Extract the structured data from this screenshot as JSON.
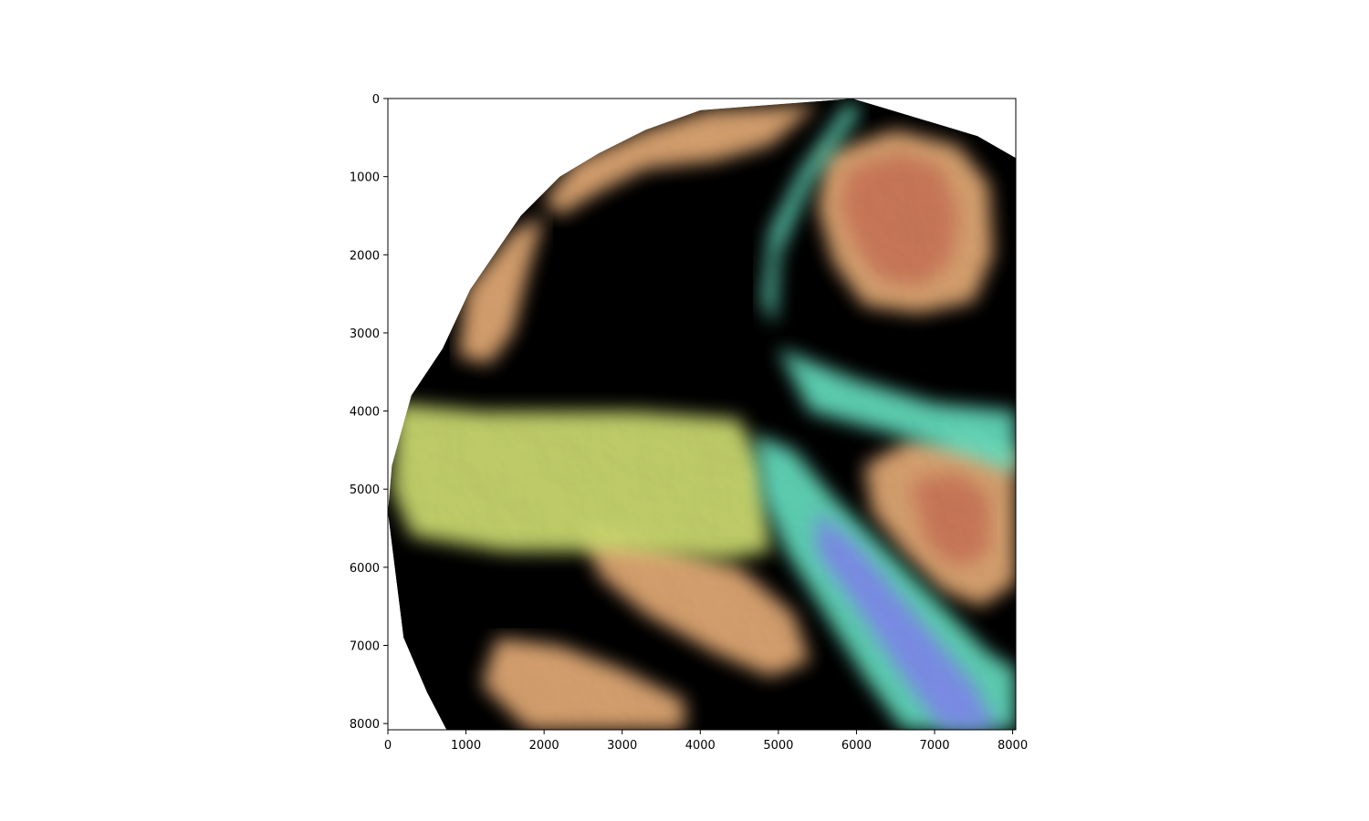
{
  "chart_data": {
    "type": "heatmap",
    "title": "",
    "xlabel": "",
    "ylabel": "",
    "xlim": [
      0,
      8040
    ],
    "ylim": [
      8080,
      0
    ],
    "x_ticks": [
      0,
      1000,
      2000,
      3000,
      4000,
      5000,
      6000,
      7000,
      8000
    ],
    "y_ticks": [
      0,
      1000,
      2000,
      3000,
      4000,
      5000,
      6000,
      7000,
      8000
    ],
    "colormap": "rainbow (blue = low, green = mid, red = high) with hillshade",
    "grid": false,
    "legend": "none",
    "colors": {
      "low": "#7f86ee",
      "low_mid": "#67e6c6",
      "mid": "#a9ec7a",
      "mid_high": "#d6e574",
      "high": "#eeb27a",
      "peak": "#c97357",
      "axes": "#000000",
      "background": "#ffffff"
    },
    "regions": [
      {
        "kind": "boundary",
        "points": [
          [
            5950,
            0
          ],
          [
            7550,
            480
          ],
          [
            8040,
            760
          ],
          [
            8040,
            8080
          ],
          [
            750,
            8080
          ],
          [
            500,
            7600
          ],
          [
            200,
            6900
          ],
          [
            0,
            5300
          ],
          [
            50,
            4700
          ],
          [
            300,
            3800
          ],
          [
            700,
            3200
          ],
          [
            1050,
            2450
          ],
          [
            1700,
            1500
          ],
          [
            2200,
            1000
          ],
          [
            2700,
            700
          ],
          [
            3300,
            400
          ],
          [
            4000,
            150
          ]
        ]
      },
      {
        "kind": "high",
        "points": [
          [
            5600,
            700
          ],
          [
            6500,
            400
          ],
          [
            7300,
            600
          ],
          [
            7700,
            1100
          ],
          [
            7750,
            2000
          ],
          [
            7500,
            2600
          ],
          [
            6800,
            2750
          ],
          [
            6100,
            2650
          ],
          [
            5700,
            2100
          ],
          [
            5500,
            1400
          ]
        ]
      },
      {
        "kind": "peak",
        "points": [
          [
            5900,
            900
          ],
          [
            6600,
            700
          ],
          [
            7100,
            900
          ],
          [
            7300,
            1500
          ],
          [
            7200,
            2100
          ],
          [
            6800,
            2400
          ],
          [
            6300,
            2300
          ],
          [
            6000,
            1900
          ],
          [
            5800,
            1400
          ]
        ]
      },
      {
        "kind": "high",
        "points": [
          [
            6100,
            4700
          ],
          [
            6700,
            4350
          ],
          [
            7400,
            4300
          ],
          [
            8040,
            4500
          ],
          [
            8040,
            6200
          ],
          [
            7600,
            6500
          ],
          [
            7100,
            6300
          ],
          [
            6600,
            5800
          ],
          [
            6200,
            5300
          ]
        ]
      },
      {
        "kind": "peak",
        "points": [
          [
            6700,
            4900
          ],
          [
            7300,
            4800
          ],
          [
            7700,
            5100
          ],
          [
            7700,
            5800
          ],
          [
            7300,
            6000
          ],
          [
            6900,
            5700
          ]
        ]
      },
      {
        "kind": "high",
        "points": [
          [
            2500,
            5500
          ],
          [
            3500,
            5700
          ],
          [
            4500,
            6000
          ],
          [
            5200,
            6600
          ],
          [
            5400,
            7200
          ],
          [
            4900,
            7400
          ],
          [
            4200,
            7100
          ],
          [
            3300,
            6600
          ],
          [
            2700,
            6100
          ]
        ]
      },
      {
        "kind": "high",
        "points": [
          [
            1400,
            6900
          ],
          [
            2200,
            7000
          ],
          [
            3000,
            7300
          ],
          [
            3800,
            7700
          ],
          [
            3800,
            8080
          ],
          [
            1800,
            8080
          ],
          [
            1200,
            7500
          ]
        ]
      },
      {
        "kind": "high",
        "points": [
          [
            1000,
            2450
          ],
          [
            1600,
            1700
          ],
          [
            2000,
            1500
          ],
          [
            1800,
            2200
          ],
          [
            1600,
            3000
          ],
          [
            1300,
            3400
          ],
          [
            900,
            3300
          ]
        ]
      },
      {
        "kind": "high",
        "points": [
          [
            2400,
            800
          ],
          [
            3300,
            400
          ],
          [
            4100,
            150
          ],
          [
            5500,
            80
          ],
          [
            4900,
            600
          ],
          [
            4200,
            800
          ],
          [
            3300,
            900
          ],
          [
            2700,
            1200
          ],
          [
            2200,
            1500
          ],
          [
            2000,
            1300
          ]
        ]
      },
      {
        "kind": "mid_high",
        "points": [
          [
            100,
            3900
          ],
          [
            1200,
            4000
          ],
          [
            3200,
            4000
          ],
          [
            4500,
            4100
          ],
          [
            4800,
            4700
          ],
          [
            4900,
            5800
          ],
          [
            4300,
            5900
          ],
          [
            3000,
            5800
          ],
          [
            1500,
            5800
          ],
          [
            300,
            5600
          ],
          [
            50,
            5000
          ]
        ]
      },
      {
        "kind": "low_mid",
        "points": [
          [
            4700,
            4300
          ],
          [
            5200,
            4500
          ],
          [
            5700,
            5100
          ],
          [
            6300,
            5700
          ],
          [
            7000,
            6400
          ],
          [
            7700,
            7100
          ],
          [
            8040,
            7300
          ],
          [
            8040,
            8080
          ],
          [
            6600,
            8080
          ],
          [
            6100,
            7400
          ],
          [
            5600,
            6600
          ],
          [
            5100,
            5800
          ],
          [
            4800,
            5100
          ]
        ]
      },
      {
        "kind": "low",
        "points": [
          [
            5500,
            5300
          ],
          [
            6000,
            5700
          ],
          [
            6500,
            6300
          ],
          [
            7000,
            6900
          ],
          [
            7500,
            7500
          ],
          [
            7800,
            8080
          ],
          [
            7100,
            8080
          ],
          [
            6600,
            7400
          ],
          [
            6000,
            6500
          ],
          [
            5500,
            5800
          ]
        ]
      },
      {
        "kind": "low_mid",
        "points": [
          [
            5000,
            3200
          ],
          [
            6000,
            3600
          ],
          [
            7000,
            3900
          ],
          [
            8040,
            4000
          ],
          [
            8040,
            4800
          ],
          [
            7500,
            4600
          ],
          [
            6500,
            4300
          ],
          [
            5400,
            4000
          ]
        ]
      },
      {
        "kind": "low_mid",
        "points": [
          [
            5900,
            50
          ],
          [
            6050,
            150
          ],
          [
            5400,
            1100
          ],
          [
            5000,
            2000
          ],
          [
            4950,
            2900
          ],
          [
            4800,
            2600
          ],
          [
            4900,
            1700
          ],
          [
            5300,
            900
          ]
        ]
      }
    ]
  }
}
